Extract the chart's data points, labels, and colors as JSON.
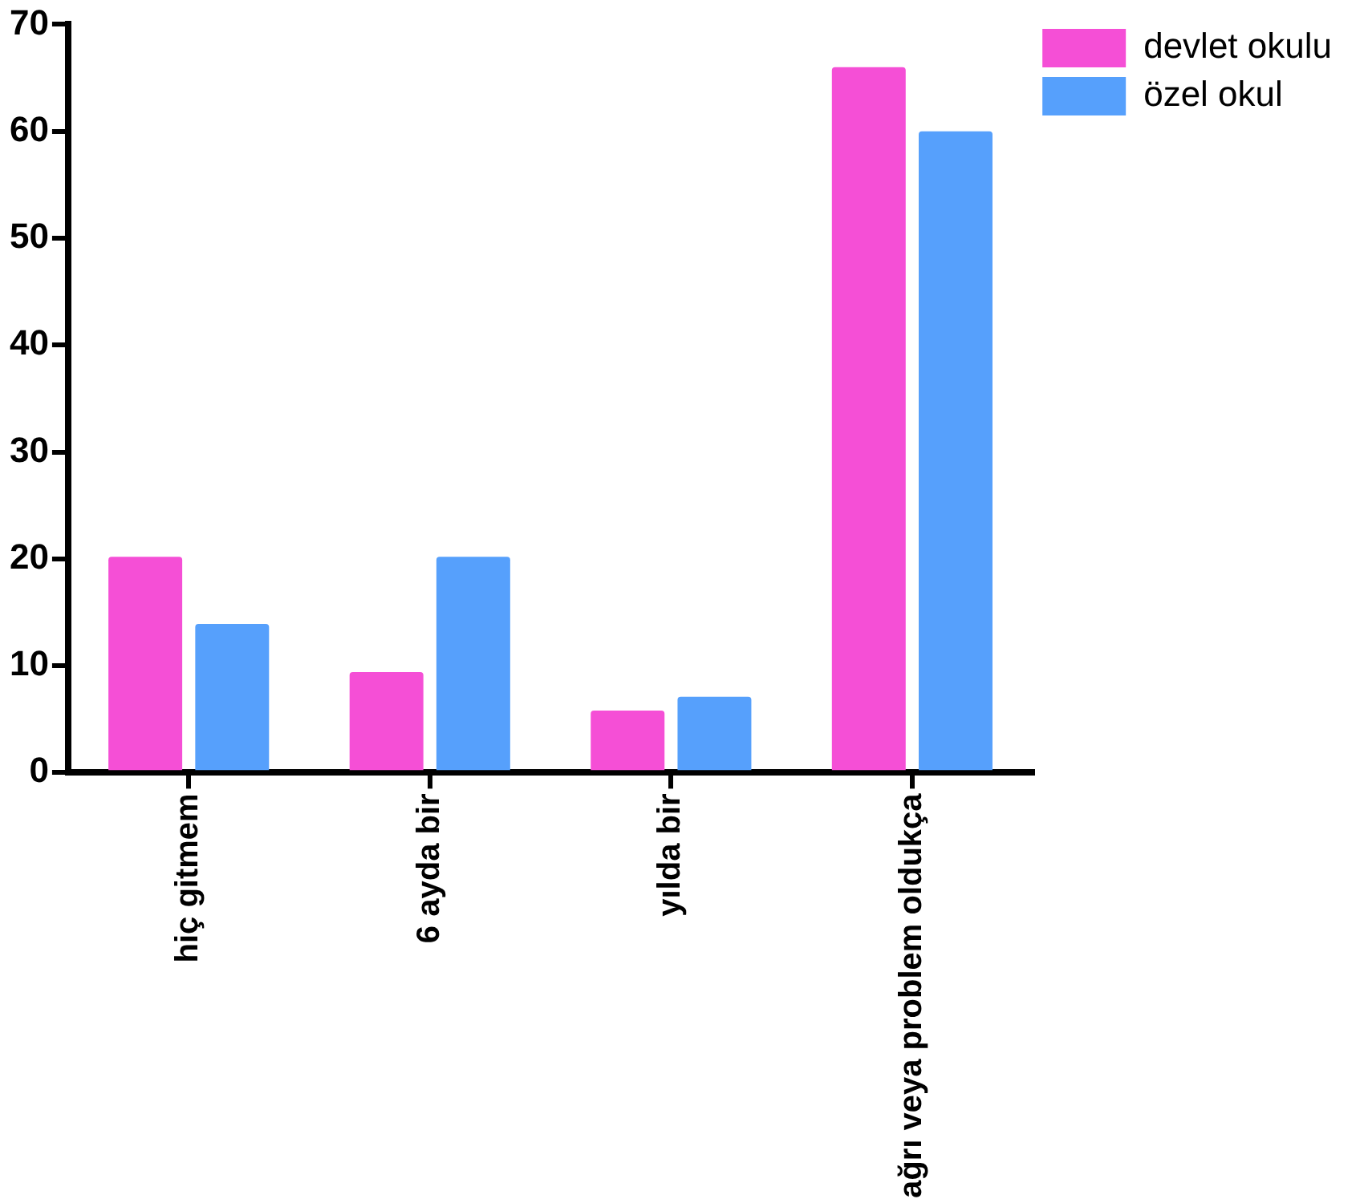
{
  "chart_data": {
    "type": "bar",
    "categories": [
      "hiç gitmem",
      "6 ayda bir",
      "yılda bir",
      "ağrı veya problem oldukça"
    ],
    "series": [
      {
        "name": "devlet okulu",
        "color": "#f54fd6",
        "values": [
          20.2,
          9.4,
          5.8,
          66
        ]
      },
      {
        "name": "özel okul",
        "color": "#56a0fc",
        "values": [
          13.9,
          20.2,
          7.1,
          60
        ]
      }
    ],
    "ylim": [
      0,
      70
    ],
    "yticks": [
      0,
      10,
      20,
      30,
      40,
      50,
      60,
      70
    ],
    "grid": false,
    "legend": "top right"
  }
}
